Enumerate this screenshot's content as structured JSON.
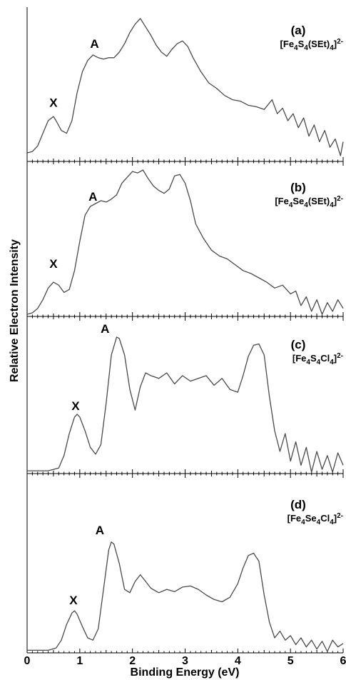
{
  "chart_data": {
    "type": "line",
    "xlabel": "Binding Energy (eV)",
    "ylabel": "Relative Electron Intensity",
    "xlim": [
      0,
      6
    ],
    "x_ticks": [
      "0",
      "1",
      "2",
      "3",
      "4",
      "5",
      "6"
    ],
    "grid": false,
    "panels": [
      {
        "id": "a",
        "letter": "(a)",
        "formula": {
          "base1": "[Fe",
          "sub1": "4",
          "base2": "S",
          "sub2": "4",
          "base3": "(SEt)",
          "sub3": "4",
          "base4": "]",
          "sup": "2-"
        },
        "peak_labels": [
          {
            "text": "X",
            "x": 0.5,
            "y": 0.32
          },
          {
            "text": "A",
            "x": 1.28,
            "y": 0.74
          }
        ],
        "x": [
          0.0,
          0.1,
          0.2,
          0.3,
          0.4,
          0.5,
          0.55,
          0.65,
          0.75,
          0.85,
          0.95,
          1.05,
          1.15,
          1.25,
          1.35,
          1.45,
          1.55,
          1.65,
          1.75,
          1.85,
          1.95,
          2.05,
          2.15,
          2.25,
          2.35,
          2.45,
          2.55,
          2.65,
          2.75,
          2.85,
          2.95,
          3.05,
          3.15,
          3.3,
          3.45,
          3.6,
          3.75,
          3.9,
          4.05,
          4.2,
          4.35,
          4.5,
          4.65,
          4.75,
          4.85,
          4.95,
          5.05,
          5.15,
          5.25,
          5.35,
          5.45,
          5.55,
          5.65,
          5.75,
          5.85,
          5.95,
          6.0
        ],
        "y": [
          0.02,
          0.03,
          0.07,
          0.16,
          0.25,
          0.28,
          0.25,
          0.18,
          0.16,
          0.25,
          0.45,
          0.6,
          0.68,
          0.72,
          0.7,
          0.69,
          0.7,
          0.7,
          0.74,
          0.8,
          0.88,
          0.94,
          0.98,
          0.92,
          0.86,
          0.79,
          0.74,
          0.71,
          0.76,
          0.8,
          0.82,
          0.78,
          0.7,
          0.6,
          0.52,
          0.48,
          0.43,
          0.4,
          0.39,
          0.36,
          0.35,
          0.33,
          0.4,
          0.3,
          0.34,
          0.25,
          0.3,
          0.2,
          0.27,
          0.14,
          0.22,
          0.1,
          0.18,
          0.06,
          0.12,
          0.0,
          0.1
        ]
      },
      {
        "id": "b",
        "letter": "(b)",
        "formula": {
          "base1": "[Fe",
          "sub1": "4",
          "base2": "Se",
          "sub2": "4",
          "base3": "(SEt)",
          "sub3": "4",
          "base4": "]",
          "sup": "2-"
        },
        "peak_labels": [
          {
            "text": "X",
            "x": 0.5,
            "y": 0.29
          },
          {
            "text": "A",
            "x": 1.25,
            "y": 0.75
          }
        ],
        "x": [
          0.0,
          0.1,
          0.2,
          0.3,
          0.4,
          0.5,
          0.6,
          0.7,
          0.8,
          0.9,
          1.0,
          1.1,
          1.2,
          1.3,
          1.4,
          1.5,
          1.6,
          1.7,
          1.8,
          1.9,
          2.0,
          2.1,
          2.2,
          2.3,
          2.4,
          2.5,
          2.6,
          2.7,
          2.8,
          2.9,
          3.0,
          3.1,
          3.2,
          3.35,
          3.5,
          3.65,
          3.8,
          3.95,
          4.1,
          4.25,
          4.4,
          4.55,
          4.7,
          4.85,
          5.0,
          5.1,
          5.2,
          5.3,
          5.4,
          5.5,
          5.6,
          5.7,
          5.8,
          5.9,
          6.0
        ],
        "y": [
          0.0,
          0.01,
          0.04,
          0.1,
          0.18,
          0.22,
          0.2,
          0.15,
          0.17,
          0.3,
          0.5,
          0.68,
          0.74,
          0.76,
          0.78,
          0.77,
          0.79,
          0.82,
          0.9,
          0.94,
          0.98,
          0.97,
          0.99,
          0.93,
          0.88,
          0.85,
          0.83,
          0.86,
          0.95,
          0.96,
          0.9,
          0.78,
          0.62,
          0.52,
          0.44,
          0.4,
          0.38,
          0.34,
          0.3,
          0.28,
          0.25,
          0.22,
          0.18,
          0.2,
          0.14,
          0.16,
          0.06,
          0.12,
          0.02,
          0.1,
          0.0,
          0.08,
          0.02,
          0.1,
          0.04
        ]
      },
      {
        "id": "c",
        "letter": "(c)",
        "formula": {
          "base1": "[Fe",
          "sub1": "4",
          "base2": "S",
          "sub2": "4",
          "base3": "Cl",
          "sub3": "4",
          "base4": "]",
          "sup": "2-"
        },
        "peak_labels": [
          {
            "text": "X",
            "x": 0.92,
            "y": 0.42
          },
          {
            "text": "A",
            "x": 1.48,
            "y": 0.98
          }
        ],
        "x": [
          0.0,
          0.2,
          0.4,
          0.6,
          0.7,
          0.8,
          0.9,
          0.95,
          1.0,
          1.1,
          1.2,
          1.3,
          1.4,
          1.5,
          1.6,
          1.7,
          1.75,
          1.85,
          1.95,
          2.05,
          2.15,
          2.25,
          2.35,
          2.5,
          2.65,
          2.8,
          2.95,
          3.1,
          3.25,
          3.4,
          3.55,
          3.7,
          3.85,
          4.0,
          4.1,
          4.2,
          4.3,
          4.4,
          4.5,
          4.6,
          4.7,
          4.8,
          4.9,
          5.0,
          5.1,
          5.2,
          5.3,
          5.4,
          5.5,
          5.6,
          5.7,
          5.8,
          5.9,
          6.0
        ],
        "y": [
          0.01,
          0.01,
          0.01,
          0.03,
          0.12,
          0.28,
          0.4,
          0.42,
          0.4,
          0.3,
          0.18,
          0.13,
          0.2,
          0.5,
          0.85,
          0.98,
          0.97,
          0.85,
          0.6,
          0.45,
          0.62,
          0.72,
          0.7,
          0.68,
          0.72,
          0.64,
          0.7,
          0.66,
          0.68,
          0.7,
          0.63,
          0.68,
          0.6,
          0.58,
          0.7,
          0.84,
          0.92,
          0.93,
          0.85,
          0.55,
          0.3,
          0.15,
          0.28,
          0.08,
          0.22,
          0.05,
          0.18,
          0.0,
          0.15,
          0.02,
          0.12,
          0.0,
          0.14,
          0.05
        ]
      },
      {
        "id": "d",
        "letter": "(d)",
        "formula": {
          "base1": "[Fe",
          "sub1": "4",
          "base2": "Se",
          "sub2": "4",
          "base3": "Cl",
          "sub3": "4",
          "base4": "]",
          "sup": "2-"
        },
        "peak_labels": [
          {
            "text": "X",
            "x": 0.88,
            "y": 0.38
          },
          {
            "text": "A",
            "x": 1.38,
            "y": 1.0
          }
        ],
        "x": [
          0.0,
          0.2,
          0.4,
          0.55,
          0.65,
          0.75,
          0.85,
          0.9,
          0.95,
          1.05,
          1.15,
          1.25,
          1.35,
          1.45,
          1.55,
          1.6,
          1.65,
          1.75,
          1.85,
          1.95,
          2.05,
          2.15,
          2.25,
          2.35,
          2.5,
          2.65,
          2.8,
          2.95,
          3.1,
          3.25,
          3.4,
          3.55,
          3.7,
          3.85,
          4.0,
          4.1,
          4.2,
          4.3,
          4.4,
          4.5,
          4.6,
          4.7,
          4.8,
          4.9,
          5.0,
          5.1,
          5.2,
          5.3,
          5.4,
          5.5,
          5.6,
          5.7,
          5.8,
          5.9,
          6.0
        ],
        "y": [
          0.01,
          0.01,
          0.01,
          0.03,
          0.1,
          0.24,
          0.34,
          0.36,
          0.33,
          0.22,
          0.12,
          0.1,
          0.2,
          0.55,
          0.9,
          0.97,
          0.95,
          0.78,
          0.55,
          0.52,
          0.62,
          0.68,
          0.62,
          0.56,
          0.52,
          0.55,
          0.53,
          0.57,
          0.58,
          0.55,
          0.5,
          0.46,
          0.44,
          0.48,
          0.6,
          0.74,
          0.85,
          0.87,
          0.8,
          0.5,
          0.26,
          0.12,
          0.18,
          0.1,
          0.14,
          0.06,
          0.12,
          0.04,
          0.1,
          0.02,
          0.09,
          0.0,
          0.1,
          0.04,
          0.07
        ]
      }
    ]
  }
}
